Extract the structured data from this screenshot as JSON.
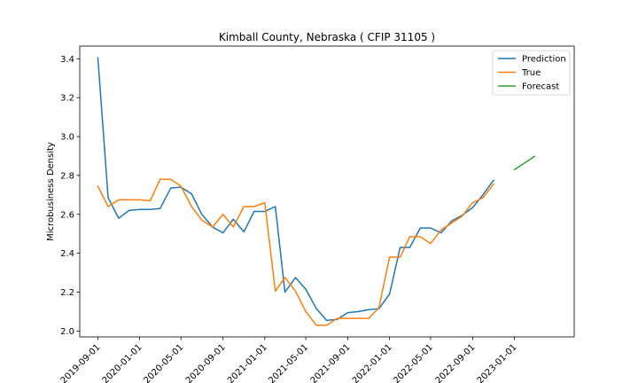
{
  "chart_data": {
    "type": "line",
    "title": "Kimball County, Nebraska ( CFIP 31105 )",
    "xlabel": "",
    "ylabel": "Microbusiness Density",
    "ylim": [
      1.97,
      3.465
    ],
    "xlim": [
      "2019-07-10",
      "2023-06-25"
    ],
    "grid": false,
    "legend_position": "top-right",
    "x_ticks": [
      "2019-09-01",
      "2020-01-01",
      "2020-05-01",
      "2020-09-01",
      "2021-01-01",
      "2021-05-01",
      "2021-09-01",
      "2022-01-01",
      "2022-05-01",
      "2022-09-01",
      "2023-01-01"
    ],
    "y_ticks": [
      2.0,
      2.2,
      2.4,
      2.6,
      2.8,
      3.0,
      3.2,
      3.4
    ],
    "y_tick_labels": [
      "2.0",
      "2.2",
      "2.4",
      "2.6",
      "2.8",
      "3.0",
      "3.2",
      "3.4"
    ],
    "series": [
      {
        "name": "Prediction",
        "color": "#1f77b4",
        "x": [
          "2019-09-01",
          "2019-10-01",
          "2019-11-01",
          "2019-12-01",
          "2020-01-01",
          "2020-02-01",
          "2020-03-01",
          "2020-04-01",
          "2020-05-01",
          "2020-06-01",
          "2020-07-01",
          "2020-08-01",
          "2020-09-01",
          "2020-10-01",
          "2020-11-01",
          "2020-12-01",
          "2021-01-01",
          "2021-02-01",
          "2021-03-01",
          "2021-04-01",
          "2021-05-01",
          "2021-06-01",
          "2021-07-01",
          "2021-08-01",
          "2021-09-01",
          "2021-10-01",
          "2021-11-01",
          "2021-12-01",
          "2022-01-01",
          "2022-02-01",
          "2022-03-01",
          "2022-04-01",
          "2022-05-01",
          "2022-06-01",
          "2022-07-01",
          "2022-08-01",
          "2022-09-01",
          "2022-10-01",
          "2022-11-01"
        ],
        "values": [
          3.405,
          2.685,
          2.58,
          2.62,
          2.625,
          2.625,
          2.63,
          2.735,
          2.74,
          2.705,
          2.6,
          2.535,
          2.505,
          2.575,
          2.51,
          2.615,
          2.615,
          2.64,
          2.2,
          2.275,
          2.215,
          2.115,
          2.055,
          2.06,
          2.095,
          2.1,
          2.11,
          2.115,
          2.19,
          2.43,
          2.43,
          2.53,
          2.53,
          2.505,
          2.565,
          2.595,
          2.635,
          2.7,
          2.775
        ]
      },
      {
        "name": "True",
        "color": "#ff7f0e",
        "x": [
          "2019-09-01",
          "2019-10-01",
          "2019-11-01",
          "2019-12-01",
          "2020-01-01",
          "2020-02-01",
          "2020-03-01",
          "2020-04-01",
          "2020-05-01",
          "2020-06-01",
          "2020-07-01",
          "2020-08-01",
          "2020-09-01",
          "2020-10-01",
          "2020-11-01",
          "2020-12-01",
          "2021-01-01",
          "2021-02-01",
          "2021-03-01",
          "2021-04-01",
          "2021-05-01",
          "2021-06-01",
          "2021-07-01",
          "2021-08-01",
          "2021-09-01",
          "2021-10-01",
          "2021-11-01",
          "2021-12-01",
          "2022-01-01",
          "2022-02-01",
          "2022-03-01",
          "2022-04-01",
          "2022-05-01",
          "2022-06-01",
          "2022-07-01",
          "2022-08-01",
          "2022-09-01",
          "2022-10-01",
          "2022-11-01"
        ],
        "values": [
          2.745,
          2.64,
          2.675,
          2.675,
          2.675,
          2.67,
          2.78,
          2.78,
          2.745,
          2.64,
          2.57,
          2.535,
          2.6,
          2.535,
          2.64,
          2.64,
          2.66,
          2.205,
          2.275,
          2.205,
          2.1,
          2.03,
          2.03,
          2.065,
          2.065,
          2.065,
          2.065,
          2.12,
          2.38,
          2.38,
          2.485,
          2.485,
          2.45,
          2.52,
          2.555,
          2.59,
          2.66,
          2.685,
          2.755
        ]
      },
      {
        "name": "Forecast",
        "color": "#2ca02c",
        "x": [
          "2023-01-01",
          "2023-02-01",
          "2023-03-01"
        ],
        "values": [
          2.83,
          2.865,
          2.898
        ]
      }
    ]
  }
}
